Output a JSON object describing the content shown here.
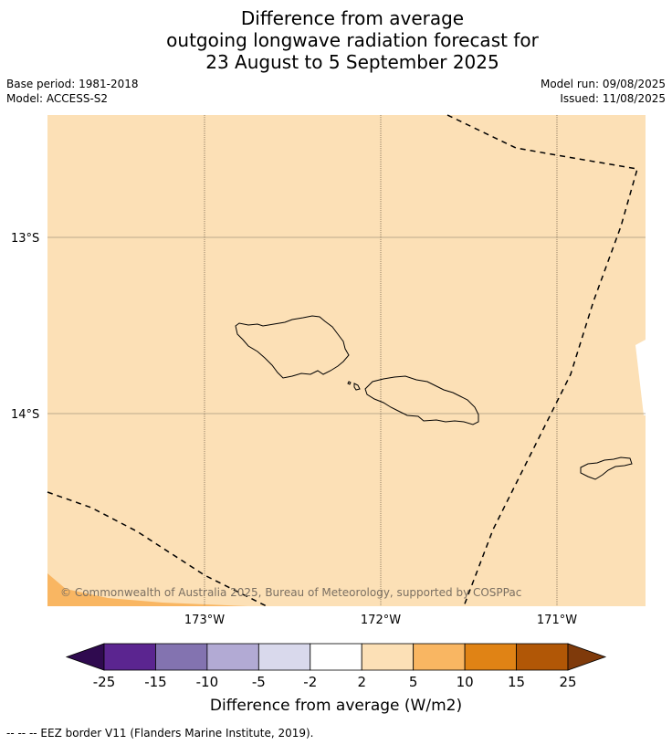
{
  "title": {
    "line1": "Difference from average",
    "line2": "outgoing longwave radiation forecast for",
    "line3": "23 August to 5 September 2025"
  },
  "meta": {
    "base_period": "Base period: 1981-2018",
    "model": "Model: ACCESS-S2",
    "model_run": "Model run: 09/08/2025",
    "issued": "Issued: 11/08/2025"
  },
  "map": {
    "background_color": "#fce0b6",
    "lat_labels": [
      "13°S",
      "14°S"
    ],
    "lon_labels": [
      "173°W",
      "172°W",
      "171°W"
    ],
    "copyright": "© Commonwealth of Australia 2025, Bureau of Meteorology, supported by COSPPac"
  },
  "colorbar": {
    "tick_labels": [
      "-25",
      "-15",
      "-10",
      "-5",
      "-2",
      "2",
      "5",
      "10",
      "15",
      "25"
    ],
    "colors": [
      "#2f0a4f",
      "#5b2590",
      "#8373b0",
      "#b2aad4",
      "#d9d9ec",
      "#ffffff",
      "#fce0b6",
      "#f9b662",
      "#e08315",
      "#b15706",
      "#7f3a0b"
    ],
    "label": "Difference from average (W/m2)"
  },
  "legend_note": "--  --  -- EEZ border V11 (Flanders Marine Institute, 2019)."
}
